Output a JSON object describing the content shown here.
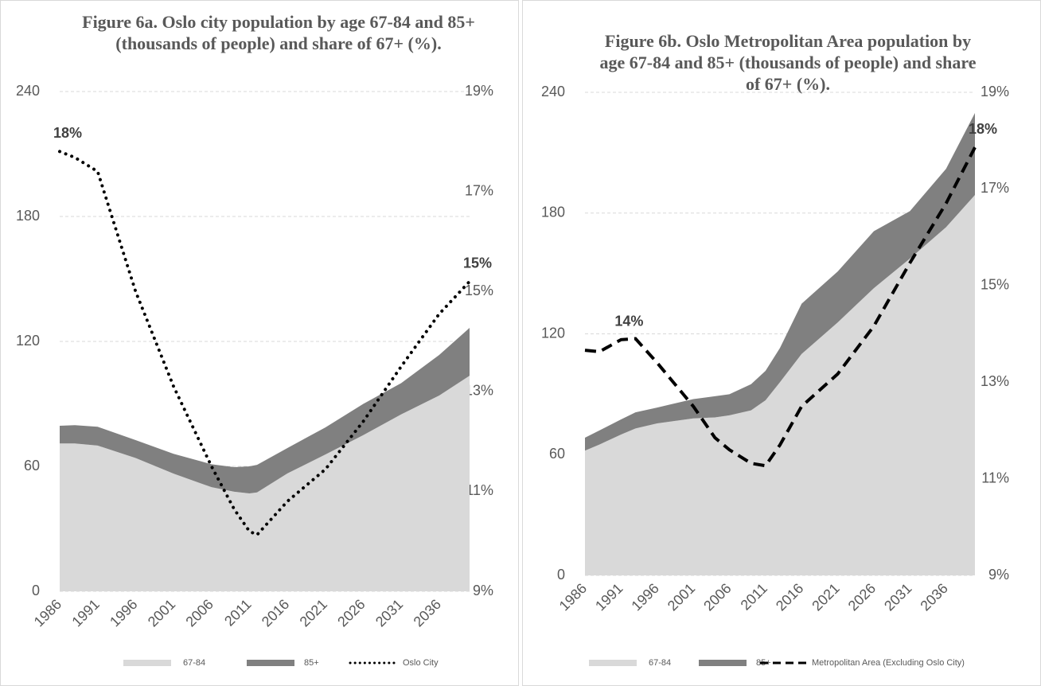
{
  "chart_data": [
    {
      "type": "area",
      "title": "Figure 6a. Oslo city population by age 67-84 and 85+ (thousands of people) and share of 67+ (%).",
      "stacked": true,
      "grid": true,
      "x": [
        1986,
        1988,
        1991,
        1996,
        2001,
        2006,
        2009,
        2011,
        2012,
        2016,
        2021,
        2026,
        2031,
        2036,
        2040
      ],
      "xlim": [
        1986,
        2040
      ],
      "xticks": [
        1986,
        1991,
        1996,
        2001,
        2006,
        2011,
        2016,
        2021,
        2026,
        2031,
        2036
      ],
      "ylim": [
        0,
        240
      ],
      "yticks": [
        0,
        60,
        120,
        180,
        240
      ],
      "y2lim": [
        9,
        19
      ],
      "y2ticks": [
        {
          "value": 9,
          "label": "9%"
        },
        {
          "value": 11,
          "label": "11%"
        },
        {
          "value": 13,
          "label": "13%"
        },
        {
          "value": 15,
          "label": "15%"
        },
        {
          "value": 17,
          "label": "17%"
        },
        {
          "value": 19,
          "label": "19%"
        }
      ],
      "series": [
        {
          "name": "67-84",
          "color": "#d9d9d9",
          "values": [
            71,
            71,
            70,
            64,
            56.5,
            50,
            47.8,
            47,
            47.5,
            56.6,
            65.7,
            75,
            85,
            94,
            103.5
          ]
        },
        {
          "name": "85+",
          "color": "#808080",
          "values": [
            8.5,
            8.8,
            9,
            8.6,
            9.5,
            11,
            11.8,
            13,
            13.2,
            12.2,
            13,
            15,
            15,
            19.5,
            23
          ]
        },
        {
          "name": "Oslo City",
          "color": "#000000",
          "axis": "y2",
          "style": "dotted",
          "values": [
            17.8,
            17.68,
            17.4,
            15.0,
            13.1,
            11.5,
            10.64,
            10.2,
            10.13,
            10.8,
            11.44,
            12.4,
            13.5,
            14.55,
            15.2
          ],
          "value_labels": [
            "18%",
            null,
            null,
            null,
            null,
            null,
            null,
            null,
            null,
            null,
            null,
            null,
            null,
            null,
            "15%"
          ]
        }
      ]
    },
    {
      "type": "area",
      "title": "Figure 6b. Oslo Metropolitan Area population by age 67-84 and 85+ (thousands of people) and share of 67+ (%).",
      "stacked": true,
      "grid": true,
      "x": [
        1986,
        1988,
        1991,
        1993,
        1996,
        2001,
        2004,
        2006,
        2009,
        2011,
        2013,
        2016,
        2021,
        2026,
        2031,
        2036,
        2040
      ],
      "xlim": [
        1986,
        2040
      ],
      "xticks": [
        1986,
        1991,
        1996,
        2001,
        2006,
        2011,
        2016,
        2021,
        2026,
        2031,
        2036
      ],
      "ylim": [
        0,
        240
      ],
      "yticks": [
        0,
        60,
        120,
        180,
        240
      ],
      "y2lim": [
        9,
        19
      ],
      "y2ticks": [
        {
          "value": 9,
          "label": "9%"
        },
        {
          "value": 11,
          "label": "11%"
        },
        {
          "value": 13,
          "label": "13%"
        },
        {
          "value": 15,
          "label": "15%"
        },
        {
          "value": 17,
          "label": "17%"
        },
        {
          "value": 19,
          "label": "19%"
        }
      ],
      "series": [
        {
          "name": "67-84",
          "color": "#d9d9d9",
          "values": [
            62,
            65,
            70,
            73,
            75.5,
            78,
            78.5,
            79.5,
            82,
            87,
            96,
            110,
            125.7,
            142.7,
            157.4,
            173,
            189
          ]
        },
        {
          "name": "85+",
          "color": "#808080",
          "values": [
            6.4,
            7,
            7.5,
            8,
            7.9,
            9.6,
            10.5,
            10.5,
            13,
            14.6,
            17,
            25,
            25.3,
            28.3,
            23.6,
            29,
            40.7
          ]
        },
        {
          "name": "Metropolitan Area (Excluding Oslo City)",
          "color": "#000000",
          "axis": "y2",
          "style": "dashed",
          "values": [
            13.66,
            13.63,
            13.88,
            13.9,
            13.4,
            12.5,
            11.85,
            11.6,
            11.32,
            11.27,
            11.7,
            12.5,
            13.17,
            14.16,
            15.47,
            16.7,
            17.86
          ],
          "value_labels": [
            null,
            null,
            "14%",
            null,
            null,
            null,
            null,
            null,
            null,
            null,
            null,
            null,
            null,
            null,
            null,
            null,
            "18%"
          ]
        }
      ]
    }
  ]
}
